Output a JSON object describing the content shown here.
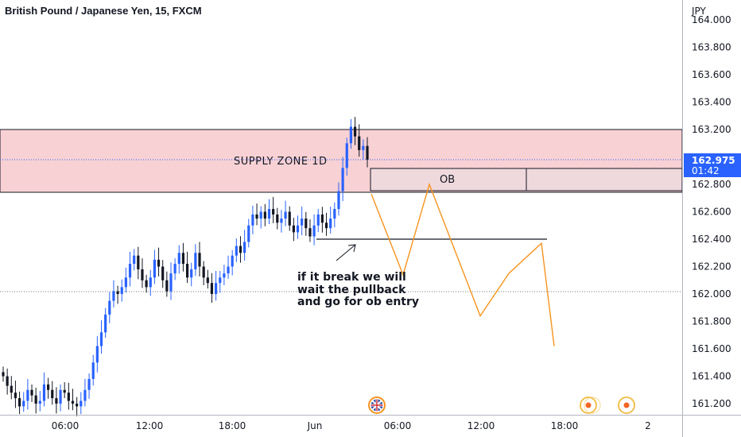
{
  "header": {
    "title": "British Pound / Japanese Yen, 15, FXCM"
  },
  "axis": {
    "currency": "JPY"
  },
  "price_badge": {
    "price": "162.975",
    "countdown": "01:42",
    "color": "#2962ff"
  },
  "annotations": {
    "supply_zone": "SUPPLY ZONE 1D",
    "ob": "OB",
    "note_lines": [
      "if it break we will",
      "wait the pullback",
      "and go for ob entry"
    ]
  },
  "colors": {
    "up": "#2962ff",
    "down": "#131722",
    "supply_fill": "#f8d1d4",
    "ob_fill": "#efd9dd",
    "projection": "#f7931e"
  },
  "icons": {
    "event_flag": "uk-flag-icon",
    "events": [
      "event-dot-icon",
      "event-dot-icon"
    ]
  },
  "chart_data": {
    "type": "candlestick",
    "title": "British Pound / Japanese Yen, 15, FXCM",
    "ylabel": "JPY",
    "ylim": [
      161.05,
      164.05
    ],
    "yticks": [
      "164.000",
      "163.800",
      "163.600",
      "163.400",
      "163.200",
      "162.800",
      "162.600",
      "162.400",
      "162.200",
      "162.000",
      "161.800",
      "161.600",
      "161.400",
      "161.200"
    ],
    "xtick_labels": [
      "06:00",
      "12:00",
      "18:00",
      "Jun",
      "06:00",
      "12:00",
      "18:00",
      "2"
    ],
    "current_price": 162.975,
    "levels": [
      {
        "name": "supply-zone",
        "from": 162.72,
        "to": 163.19
      },
      {
        "name": "order-block",
        "from": 162.73,
        "to": 162.89
      },
      {
        "name": "break-level",
        "value": 162.36
      },
      {
        "name": "reference-line",
        "value": 161.99
      }
    ],
    "projection": [
      162.73,
      162.14,
      162.8,
      161.84,
      162.15,
      162.37,
      161.62
    ],
    "closes": [
      161.4,
      161.33,
      161.28,
      161.24,
      161.18,
      161.22,
      161.3,
      161.26,
      161.2,
      161.22,
      161.34,
      161.3,
      161.24,
      161.2,
      161.3,
      161.28,
      161.22,
      161.2,
      161.18,
      161.22,
      161.3,
      161.38,
      161.5,
      161.62,
      161.72,
      161.85,
      161.95,
      162.02,
      162.0,
      162.05,
      162.12,
      162.22,
      162.28,
      162.18,
      162.1,
      162.05,
      162.12,
      162.25,
      162.2,
      162.1,
      162.02,
      162.15,
      162.22,
      162.3,
      162.22,
      162.12,
      162.18,
      162.3,
      162.2,
      162.12,
      162.08,
      162.0,
      162.08,
      162.12,
      162.15,
      162.2,
      162.28,
      162.35,
      162.3,
      162.38,
      162.5,
      162.58,
      162.55,
      162.6,
      162.55,
      162.62,
      162.58,
      162.52,
      162.55,
      162.6,
      162.5,
      162.45,
      162.5,
      162.55,
      162.48,
      162.42,
      162.5,
      162.58,
      162.52,
      162.48,
      162.55,
      162.62,
      162.75,
      162.92,
      163.1,
      163.22,
      163.15,
      163.05,
      163.08,
      162.98
    ],
    "series": [
      {
        "name": "GBPJPY"
      }
    ]
  }
}
